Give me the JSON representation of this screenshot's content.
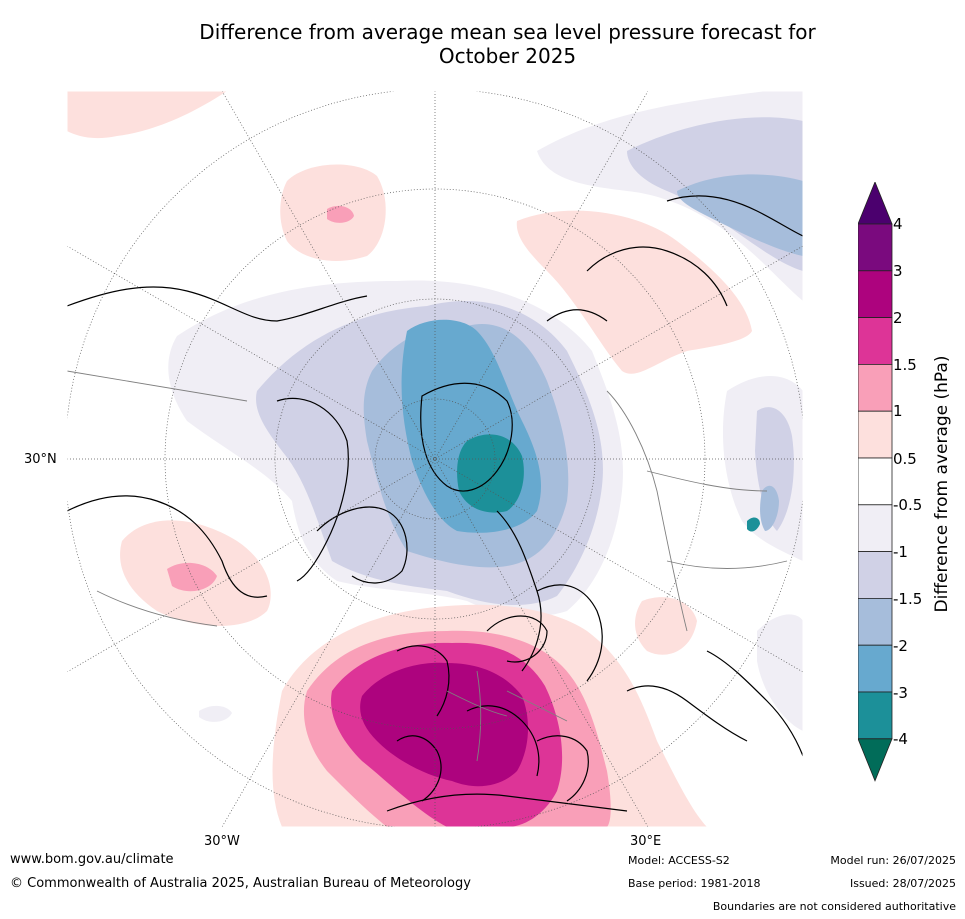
{
  "title_line1": "Difference from average mean sea level pressure forecast for",
  "title_line2": "October 2025",
  "map": {
    "lat_labels": [
      "30°N"
    ],
    "lon_labels": [
      "30°W",
      "30°E"
    ]
  },
  "colorbar": {
    "label": "Difference from average (hPa)",
    "ticks": [
      "4",
      "3",
      "2",
      "1.5",
      "1",
      "0.5",
      "-0.5",
      "-1",
      "-1.5",
      "-2",
      "-3",
      "-4"
    ],
    "colors": {
      "gt4": "#4b006e",
      "3_to_4": "#7a0a7e",
      "2_to_3": "#ad037e",
      "1.5_to_2": "#dd3497",
      "1_to_1.5": "#f99fb8",
      "0.5_to_1": "#fde0dd",
      "-0.5_to_0.5": "#ffffff",
      "-1_to_-0.5": "#f0eef5",
      "-1.5_to_-1": "#d0d1e6",
      "-2_to_-1.5": "#a6bddb",
      "-3_to_-2": "#67a9cf",
      "-4_to_-3": "#1c9099",
      "lt-4": "#016c59"
    }
  },
  "footer": {
    "website": "www.bom.gov.au/climate",
    "copyright": "© Commonwealth of Australia 2025, Australian Bureau of Meteorology",
    "model": "Model: ACCESS-S2",
    "base_period": "Base period: 1981-2018",
    "model_run": "Model run: 26/07/2025",
    "issued": "Issued: 28/07/2025",
    "disclaimer": "Boundaries are not considered authoritative"
  }
}
